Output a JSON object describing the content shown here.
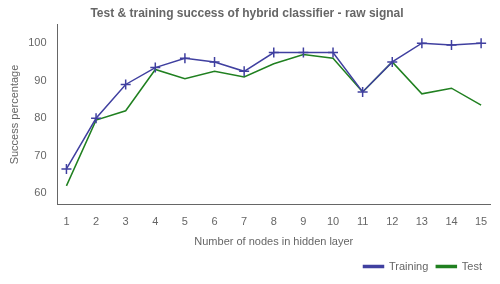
{
  "chart_data": {
    "type": "line",
    "title": "Test & training success of hybrid classifier - raw signal",
    "x_label": "Number of nodes in hidden layer",
    "y_label": "Success percentage",
    "x": [
      1,
      2,
      3,
      4,
      5,
      6,
      7,
      8,
      9,
      10,
      11,
      12,
      13,
      14,
      15
    ],
    "series": [
      {
        "name": "Training",
        "color": "#4040a0",
        "marker": "+",
        "values": [
          66.5,
          80,
          89,
          93.5,
          96,
          95,
          92.5,
          97.5,
          97.5,
          97.5,
          87,
          95,
          100,
          99.5,
          100
        ]
      },
      {
        "name": "Test",
        "color": "#208020",
        "marker": "none",
        "values": [
          62,
          79.5,
          82,
          93,
          90.5,
          92.5,
          91,
          94.5,
          97,
          96,
          87,
          95,
          86.5,
          88,
          83.5
        ]
      }
    ],
    "xlim": [
      0.7,
      15.3
    ],
    "xticks": [
      1,
      2,
      3,
      4,
      5,
      6,
      7,
      8,
      9,
      10,
      11,
      12,
      13,
      14,
      15
    ],
    "ylim": [
      57,
      105
    ],
    "yticks": [
      60,
      70,
      80,
      90,
      100
    ],
    "grid": false,
    "legend": "lower right"
  }
}
